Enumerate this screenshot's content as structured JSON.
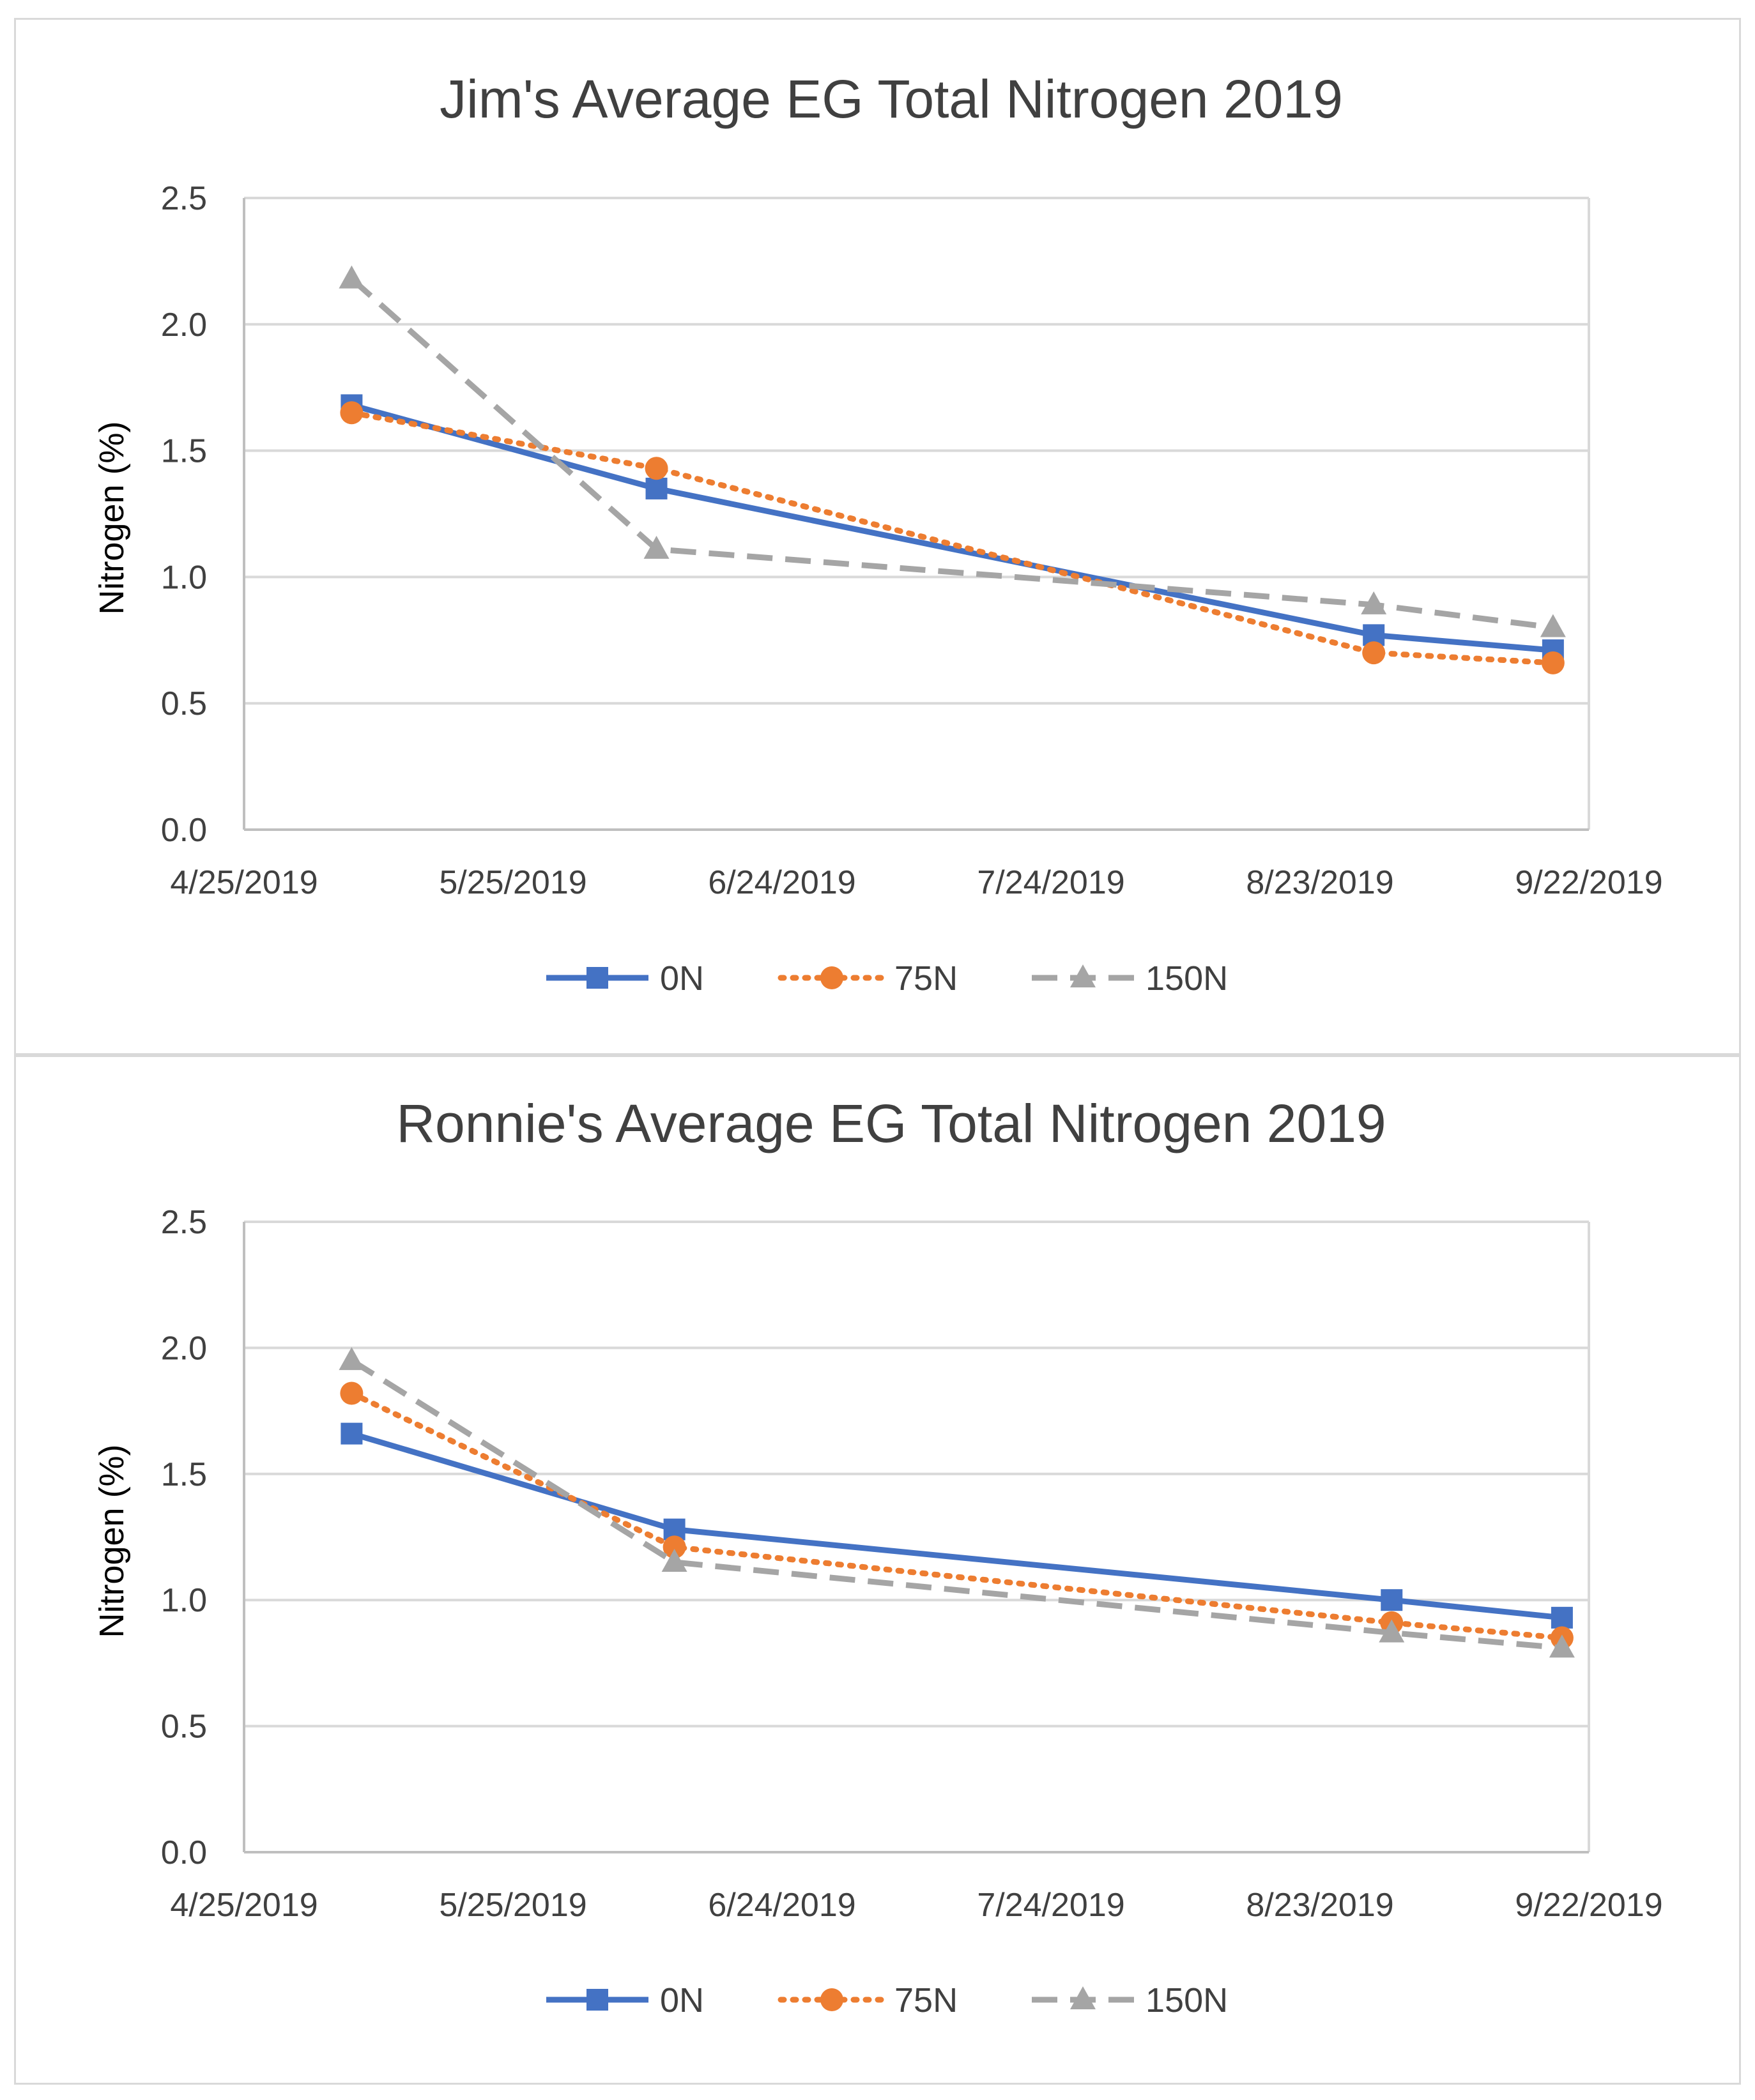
{
  "chart_data": [
    {
      "type": "line",
      "title": "Jim's Average EG Total Nitrogen 2019",
      "xlabel": "",
      "ylabel": "Nitrogen (%)",
      "ylim": [
        0,
        2.5
      ],
      "yticks": [
        "0.0",
        "0.5",
        "1.0",
        "1.5",
        "2.0",
        "2.5"
      ],
      "xlim": [
        "4/25/2019",
        "9/22/2019"
      ],
      "xticks": [
        "4/25/2019",
        "5/25/2019",
        "6/24/2019",
        "7/24/2019",
        "8/23/2019",
        "9/22/2019"
      ],
      "grid": "horizontal",
      "legend": "bottom",
      "series": [
        {
          "name": "0N",
          "color": "#4472C4",
          "marker": "square",
          "dash": "solid",
          "x": [
            "5/7/2019",
            "6/10/2019",
            "8/29/2019",
            "9/18/2019"
          ],
          "values": [
            1.68,
            1.35,
            0.77,
            0.71
          ]
        },
        {
          "name": "75N",
          "color": "#ED7D31",
          "marker": "circle",
          "dash": "dotted",
          "x": [
            "5/7/2019",
            "6/10/2019",
            "8/29/2019",
            "9/18/2019"
          ],
          "values": [
            1.65,
            1.43,
            0.7,
            0.66
          ]
        },
        {
          "name": "150N",
          "color": "#A5A5A5",
          "marker": "triangle",
          "dash": "dashed",
          "x": [
            "5/7/2019",
            "6/10/2019",
            "8/29/2019",
            "9/18/2019"
          ],
          "values": [
            2.18,
            1.11,
            0.89,
            0.8
          ]
        }
      ]
    },
    {
      "type": "line",
      "title": "Ronnie's Average EG Total Nitrogen 2019",
      "xlabel": "",
      "ylabel": "Nitrogen (%)",
      "ylim": [
        0,
        2.5
      ],
      "yticks": [
        "0.0",
        "0.5",
        "1.0",
        "1.5",
        "2.0",
        "2.5"
      ],
      "xlim": [
        "4/25/2019",
        "9/22/2019"
      ],
      "xticks": [
        "4/25/2019",
        "5/25/2019",
        "6/24/2019",
        "7/24/2019",
        "8/23/2019",
        "9/22/2019"
      ],
      "grid": "horizontal",
      "legend": "bottom",
      "series": [
        {
          "name": "0N",
          "color": "#4472C4",
          "marker": "square",
          "dash": "solid",
          "x": [
            "5/7/2019",
            "6/12/2019",
            "8/31/2019",
            "9/19/2019"
          ],
          "values": [
            1.66,
            1.28,
            1.0,
            0.93
          ]
        },
        {
          "name": "75N",
          "color": "#ED7D31",
          "marker": "circle",
          "dash": "dotted",
          "x": [
            "5/7/2019",
            "6/12/2019",
            "8/31/2019",
            "9/19/2019"
          ],
          "values": [
            1.82,
            1.21,
            0.91,
            0.85
          ]
        },
        {
          "name": "150N",
          "color": "#A5A5A5",
          "marker": "triangle",
          "dash": "dashed",
          "x": [
            "5/7/2019",
            "6/12/2019",
            "8/31/2019",
            "9/19/2019"
          ],
          "values": [
            1.95,
            1.15,
            0.87,
            0.81
          ]
        }
      ]
    }
  ]
}
